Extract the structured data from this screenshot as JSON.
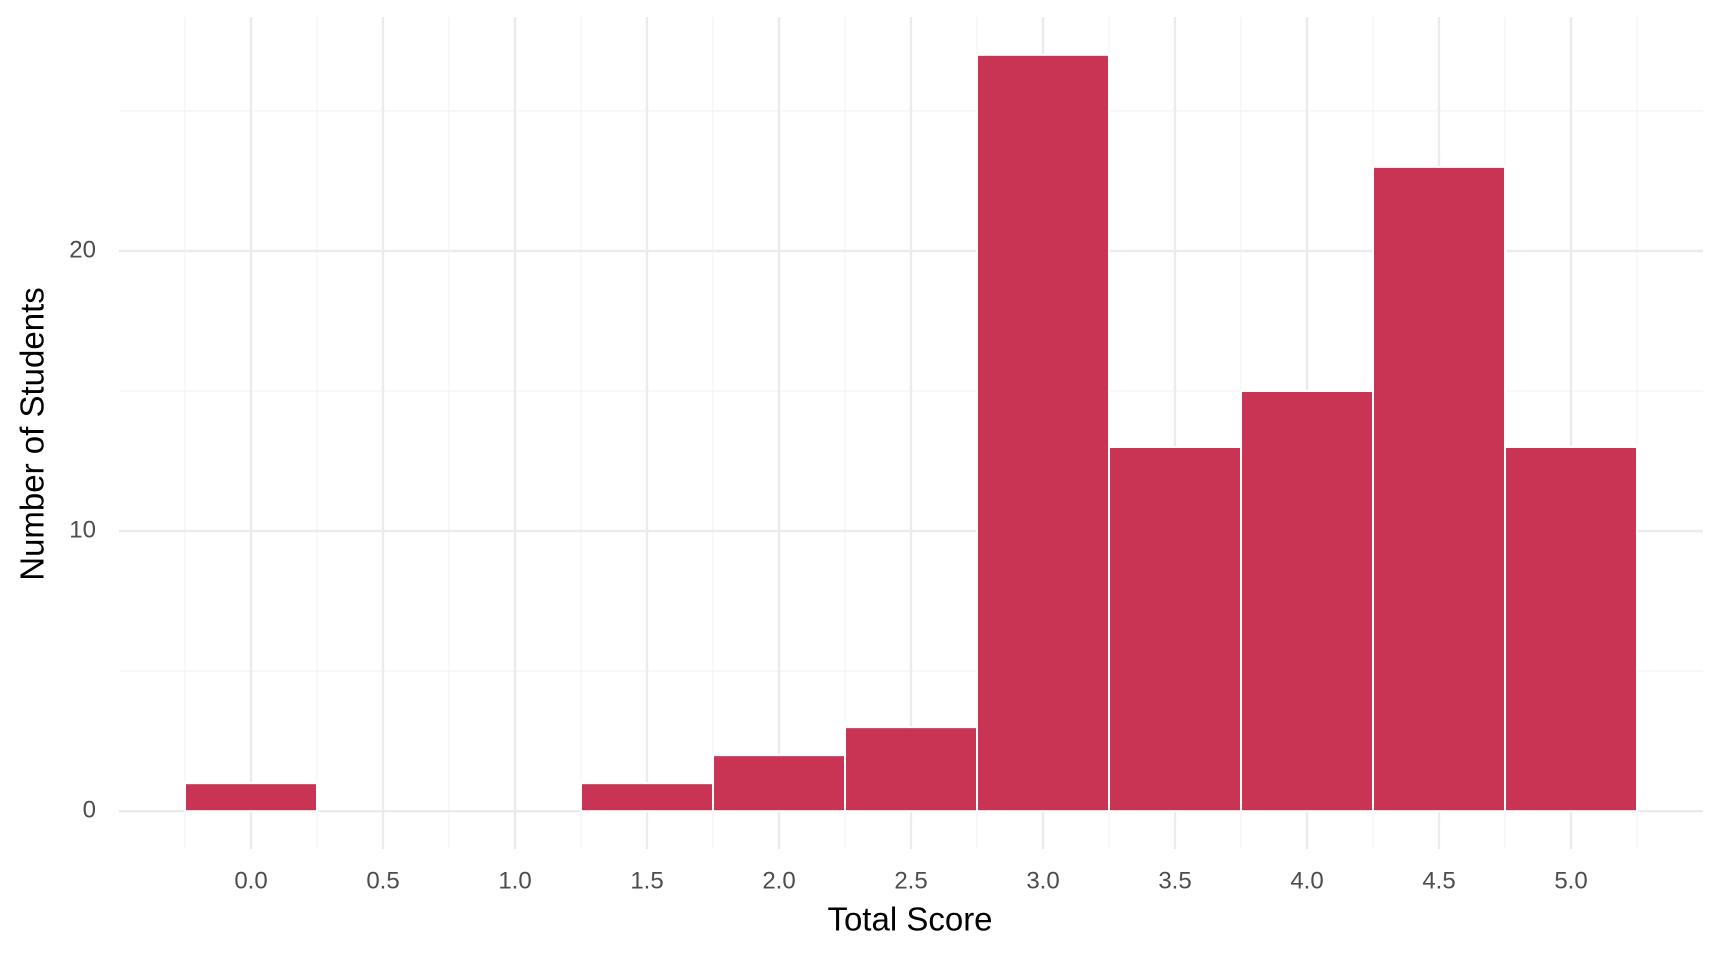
{
  "chart_data": {
    "type": "histogram",
    "xlabel": "Total Score",
    "ylabel": "Number of Students",
    "bins": [
      -0.25,
      0.25,
      0.75,
      1.25,
      1.75,
      2.25,
      2.75,
      3.25,
      3.75,
      4.25,
      4.75,
      5.25
    ],
    "counts": [
      1,
      0,
      0,
      1,
      2,
      3,
      27,
      13,
      15,
      23,
      13
    ],
    "color": "#c42347",
    "xlim": [
      -0.5,
      5.5
    ],
    "ylim": [
      -1.35,
      28.35
    ],
    "xticks": [
      {
        "value": 0,
        "label": "0.0"
      },
      0.5,
      {
        "value": 1,
        "label": "1.0"
      },
      1.5,
      {
        "value": 2,
        "label": "2.0"
      },
      2.5,
      {
        "value": 3,
        "label": "3.0"
      },
      3.5,
      {
        "value": 4,
        "label": "4.0"
      },
      4.5,
      {
        "value": 5,
        "label": "5.0"
      }
    ],
    "yticks": [
      0,
      10,
      20
    ],
    "grid": true
  }
}
